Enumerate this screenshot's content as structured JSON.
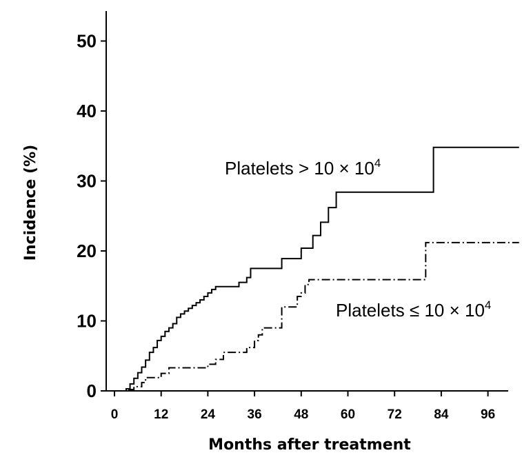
{
  "chart_data": {
    "type": "line",
    "xlabel": "Months after treatment",
    "ylabel": "Incidence (%)",
    "xlim": [
      0,
      104
    ],
    "ylim": [
      0,
      53
    ],
    "x_ticks": [
      0,
      12,
      24,
      36,
      48,
      60,
      72,
      84,
      96
    ],
    "y_ticks": [
      0,
      10,
      20,
      30,
      40,
      50
    ],
    "x_tick_labels": [
      "0",
      "12",
      "24",
      "36",
      "48",
      "60",
      "72",
      "84",
      "96"
    ],
    "y_tick_labels": [
      "0",
      "10",
      "20",
      "30",
      "40",
      "50"
    ],
    "grid": false,
    "step": true,
    "series": [
      {
        "style": "solid",
        "annotation": {
          "base": "Platelets > 10 × 10",
          "sup": "4"
        },
        "points": [
          [
            0,
            0
          ],
          [
            3,
            0.3
          ],
          [
            4,
            1
          ],
          [
            5,
            1.8
          ],
          [
            6,
            2.6
          ],
          [
            7,
            3.4
          ],
          [
            8,
            4.4
          ],
          [
            9,
            5.5
          ],
          [
            10,
            6.2
          ],
          [
            11,
            7.2
          ],
          [
            12,
            7.8
          ],
          [
            13,
            8.5
          ],
          [
            14,
            9
          ],
          [
            15,
            9.6
          ],
          [
            16,
            10.5
          ],
          [
            17,
            11
          ],
          [
            18,
            11.4
          ],
          [
            19,
            11.8
          ],
          [
            20,
            12.2
          ],
          [
            21,
            12.6
          ],
          [
            22,
            13
          ],
          [
            23,
            13.5
          ],
          [
            24,
            14
          ],
          [
            25,
            14.5
          ],
          [
            26,
            14.9
          ],
          [
            32,
            15.5
          ],
          [
            34,
            16.2
          ],
          [
            35,
            17.5
          ],
          [
            43,
            18.9
          ],
          [
            48,
            20.4
          ],
          [
            51,
            22.2
          ],
          [
            53,
            24.1
          ],
          [
            55,
            26.2
          ],
          [
            57,
            28.4
          ],
          [
            82,
            34.8
          ],
          [
            104,
            34.8
          ]
        ]
      },
      {
        "style": "dash-dot",
        "annotation": {
          "base": "Platelets ≤ 10 × 10",
          "sup": "4"
        },
        "points": [
          [
            0,
            0
          ],
          [
            3,
            0.2
          ],
          [
            5,
            0.6
          ],
          [
            7,
            1.2
          ],
          [
            8,
            1.9
          ],
          [
            12,
            2.5
          ],
          [
            14,
            3.3
          ],
          [
            24,
            3.8
          ],
          [
            26,
            4.5
          ],
          [
            28,
            5.5
          ],
          [
            34,
            6.2
          ],
          [
            36,
            7.2
          ],
          [
            37,
            8
          ],
          [
            38,
            9
          ],
          [
            43,
            12
          ],
          [
            47,
            13.5
          ],
          [
            48,
            14
          ],
          [
            49,
            15.2
          ],
          [
            50,
            15.9
          ],
          [
            80,
            21.2
          ],
          [
            104,
            21.2
          ]
        ]
      }
    ]
  }
}
